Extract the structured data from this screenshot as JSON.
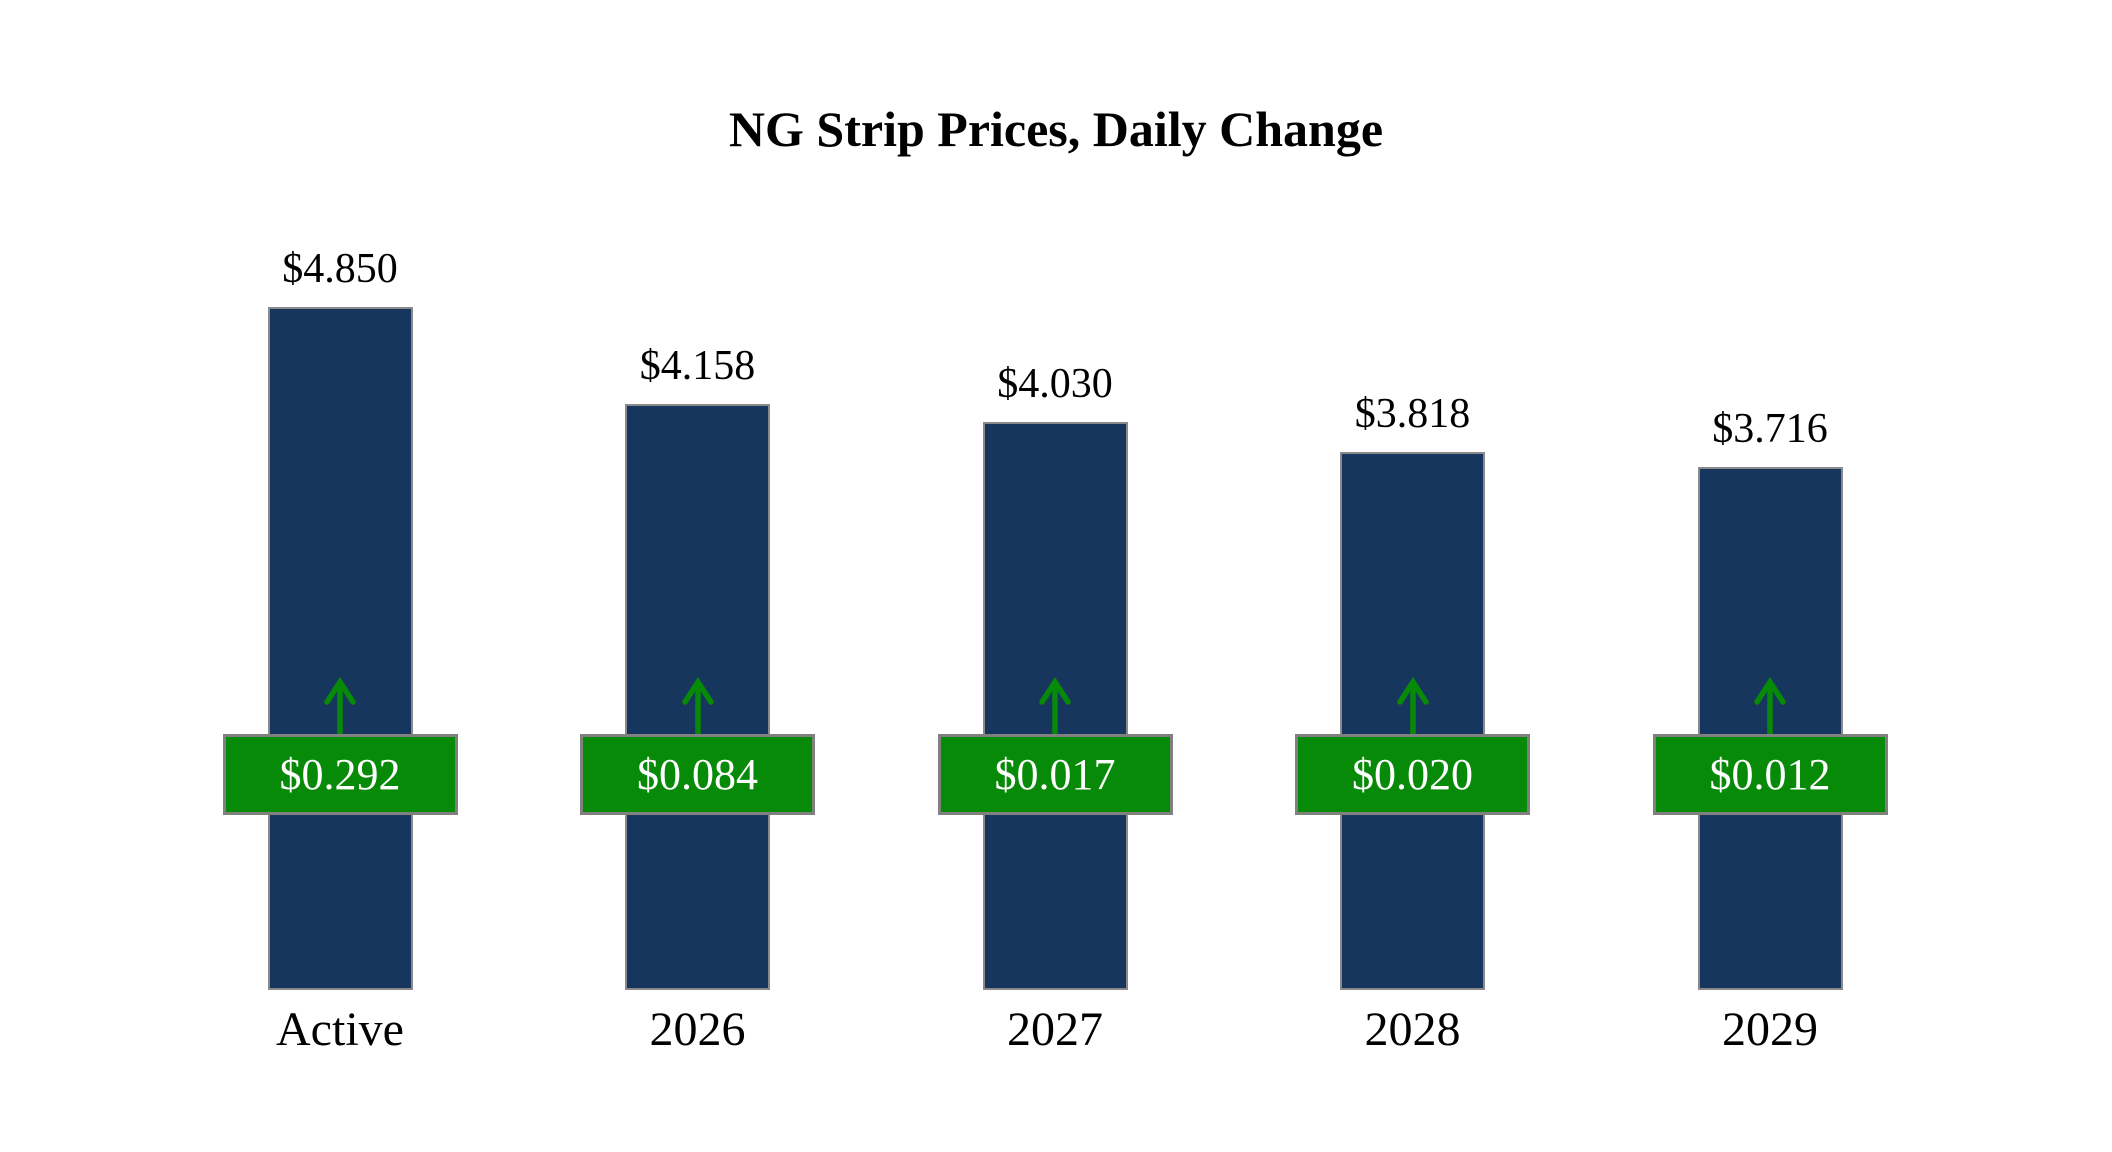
{
  "chart_data": {
    "type": "bar",
    "title": "NG Strip Prices, Daily Change",
    "categories": [
      "Active",
      "2026",
      "2027",
      "2028",
      "2029"
    ],
    "series": [
      {
        "name": "Strip Price",
        "values": [
          4.85,
          4.158,
          4.03,
          3.818,
          3.716
        ]
      },
      {
        "name": "Daily Change",
        "values": [
          0.292,
          0.084,
          0.017,
          0.02,
          0.012
        ]
      }
    ],
    "value_labels": [
      "$4.850",
      "$4.158",
      "$4.030",
      "$3.818",
      "$3.716"
    ],
    "change_labels": [
      "$0.292",
      "$0.084",
      "$0.017",
      "$0.020",
      "$0.012"
    ],
    "ylim": [
      0,
      4.85
    ],
    "grid": false,
    "legend": "none",
    "colors": {
      "bar": "#17365D",
      "badge": "#078A07",
      "badge_border": "#808080",
      "arrow": "#078A07",
      "text": "#000000",
      "badge_text": "#FFFFFF"
    }
  }
}
